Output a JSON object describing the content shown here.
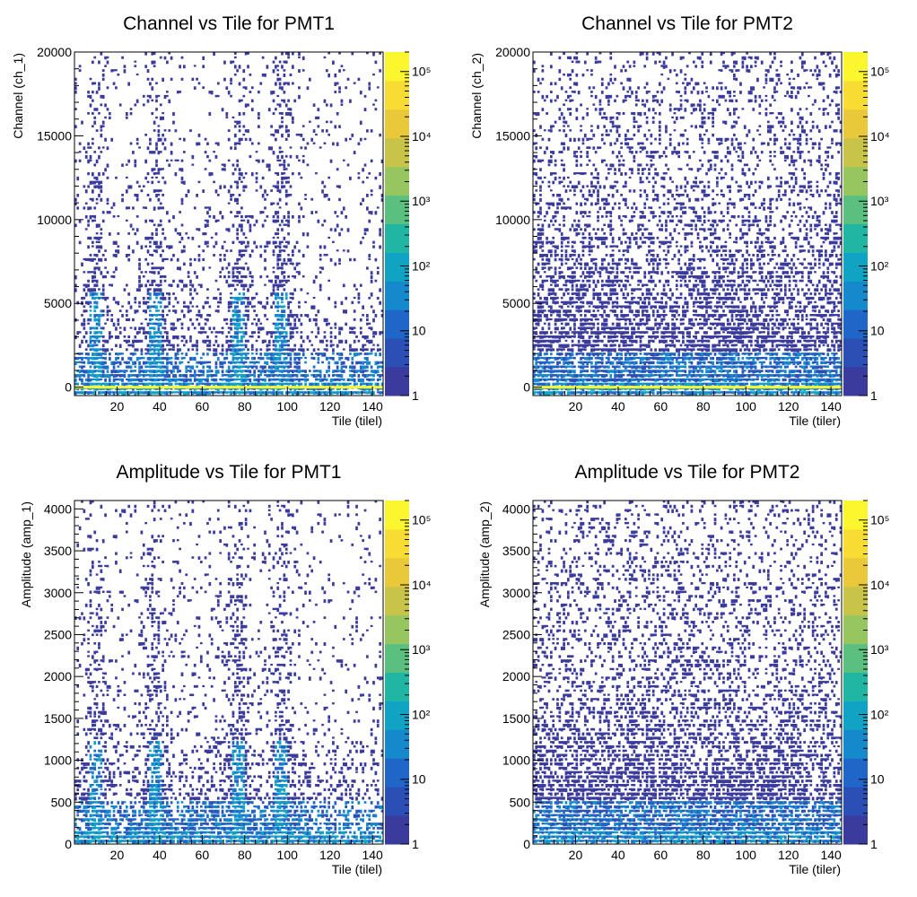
{
  "chart_data": [
    {
      "type": "heatmap",
      "title": "Channel vs Tile for PMT1",
      "xlabel": "Tile (tilel)",
      "ylabel": "Channel (ch_1)",
      "xlim": [
        0,
        145
      ],
      "ylim": [
        -500,
        20000
      ],
      "xticks": [
        20,
        40,
        60,
        80,
        100,
        120,
        140
      ],
      "yticks": [
        0,
        5000,
        10000,
        15000,
        20000
      ],
      "colorbar": {
        "scale": "log",
        "min": 1,
        "max": 200000,
        "labels": [
          "1",
          "10",
          "10²",
          "10³",
          "10⁴",
          "10⁵"
        ]
      },
      "baseline": 0,
      "hotspot_tiles": [
        10,
        38,
        77,
        97
      ],
      "density": "peaked"
    },
    {
      "type": "heatmap",
      "title": "Channel vs Tile for PMT2",
      "xlabel": "Tile (tiler)",
      "ylabel": "Channel (ch_2)",
      "xlim": [
        0,
        145
      ],
      "ylim": [
        -500,
        20000
      ],
      "xticks": [
        20,
        40,
        60,
        80,
        100,
        120,
        140
      ],
      "yticks": [
        0,
        5000,
        10000,
        15000,
        20000
      ],
      "colorbar": {
        "scale": "log",
        "min": 1,
        "max": 200000,
        "labels": [
          "1",
          "10",
          "10²",
          "10³",
          "10⁴",
          "10⁵"
        ]
      },
      "baseline": 0,
      "hotspot_tiles": [],
      "density": "uniform"
    },
    {
      "type": "heatmap",
      "title": "Amplitude vs Tile for PMT1",
      "xlabel": "Tile (tilel)",
      "ylabel": "Amplitude (amp_1)",
      "xlim": [
        0,
        145
      ],
      "ylim": [
        0,
        4100
      ],
      "xticks": [
        20,
        40,
        60,
        80,
        100,
        120,
        140
      ],
      "yticks": [
        0,
        500,
        1000,
        1500,
        2000,
        2500,
        3000,
        3500,
        4000
      ],
      "colorbar": {
        "scale": "log",
        "min": 1,
        "max": 200000,
        "labels": [
          "1",
          "10",
          "10²",
          "10³",
          "10⁴",
          "10⁵"
        ]
      },
      "baseline": null,
      "hotspot_tiles": [
        10,
        38,
        77,
        97
      ],
      "density": "peaked"
    },
    {
      "type": "heatmap",
      "title": "Amplitude vs Tile for PMT2",
      "xlabel": "Tile (tiler)",
      "ylabel": "Amplitude (amp_2)",
      "xlim": [
        0,
        145
      ],
      "ylim": [
        0,
        4100
      ],
      "xticks": [
        20,
        40,
        60,
        80,
        100,
        120,
        140
      ],
      "yticks": [
        0,
        500,
        1000,
        1500,
        2000,
        2500,
        3000,
        3500,
        4000
      ],
      "colorbar": {
        "scale": "log",
        "min": 1,
        "max": 200000,
        "labels": [
          "1",
          "10",
          "10²",
          "10³",
          "10⁴",
          "10⁵"
        ]
      },
      "baseline": null,
      "hotspot_tiles": [],
      "density": "uniform"
    }
  ],
  "colorbar_palette": [
    "#3b3b9e",
    "#2b4fb4",
    "#1f66c8",
    "#1589cc",
    "#10a3c4",
    "#21b5a4",
    "#5bbf80",
    "#97c660",
    "#c8c44a",
    "#e9c83a",
    "#f8dc33",
    "#fbf62e"
  ]
}
